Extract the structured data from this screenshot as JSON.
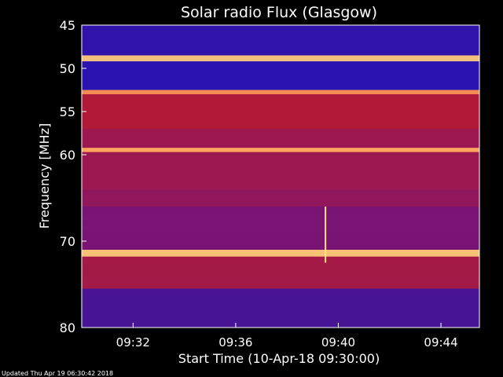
{
  "chart_data": {
    "type": "heatmap",
    "title": "Solar radio Flux (Glasgow)",
    "xlabel": "Start Time (10-Apr-18 09:30:00)",
    "ylabel": "Frequency [MHz]",
    "x_ticks": [
      "09:32",
      "09:36",
      "09:40",
      "09:44"
    ],
    "x_tick_minutes": [
      2,
      6,
      10,
      14
    ],
    "xlim_minutes": [
      0,
      15.5
    ],
    "y_ticks": [
      45,
      50,
      55,
      60,
      70,
      80
    ],
    "ylim": [
      45,
      80
    ],
    "footer": "Updated Thu Apr 19 06:30:42 2018",
    "colors": {
      "background": "#000000",
      "low": "#1010c0",
      "mid": "#c01010",
      "high": "#ffe080"
    },
    "band_rows": [
      {
        "f_start": 45.0,
        "f_end": 48.5,
        "level": 0.15
      },
      {
        "f_start": 48.5,
        "f_end": 49.2,
        "level": 0.95
      },
      {
        "f_start": 49.2,
        "f_end": 52.5,
        "level": 0.12
      },
      {
        "f_start": 52.5,
        "f_end": 53.0,
        "level": 0.85
      },
      {
        "f_start": 53.0,
        "f_end": 57.0,
        "level": 0.55
      },
      {
        "f_start": 57.0,
        "f_end": 59.2,
        "level": 0.45
      },
      {
        "f_start": 59.2,
        "f_end": 59.7,
        "level": 0.9
      },
      {
        "f_start": 59.7,
        "f_end": 64.0,
        "level": 0.45
      },
      {
        "f_start": 64.0,
        "f_end": 66.0,
        "level": 0.4
      },
      {
        "f_start": 66.0,
        "f_end": 71.0,
        "level": 0.3
      },
      {
        "f_start": 71.0,
        "f_end": 71.8,
        "level": 0.95
      },
      {
        "f_start": 71.8,
        "f_end": 75.5,
        "level": 0.5
      },
      {
        "f_start": 75.5,
        "f_end": 80.0,
        "level": 0.25
      }
    ]
  }
}
